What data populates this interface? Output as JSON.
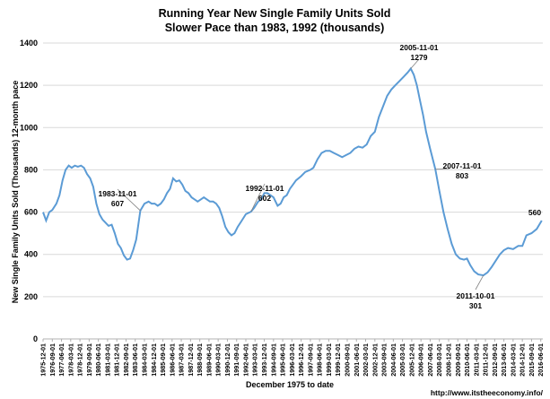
{
  "chart_data": {
    "type": "line",
    "title": "Running Year New Single Family Units Sold",
    "subtitle": "Slower Pace than 1983, 1992 (thousands)",
    "xlabel": "December 1975 to date",
    "ylabel": "New Single Family Units Sold (Thousands) 12-month pace",
    "ylim": [
      0,
      1400
    ],
    "yticks": [
      0,
      200,
      400,
      600,
      800,
      1000,
      1200,
      1400
    ],
    "grid": true,
    "legend": "none",
    "line_color": "#5b9bd5",
    "x_tick_labels": [
      "1975-12-01",
      "1976-09-01",
      "1977-06-01",
      "1978-03-01",
      "1978-12-01",
      "1979-09-01",
      "1980-06-01",
      "1981-03-01",
      "1981-12-01",
      "1982-09-01",
      "1983-06-01",
      "1984-03-01",
      "1984-12-01",
      "1985-09-01",
      "1986-06-01",
      "1987-03-01",
      "1987-12-01",
      "1988-09-01",
      "1989-06-01",
      "1990-03-01",
      "1990-12-01",
      "1991-09-01",
      "1992-06-01",
      "1993-03-01",
      "1993-12-01",
      "1994-09-01",
      "1995-06-01",
      "1996-03-01",
      "1996-12-01",
      "1997-09-01",
      "1998-06-01",
      "1999-03-01",
      "1999-12-01",
      "2000-09-01",
      "2001-06-01",
      "2002-03-01",
      "2002-12-01",
      "2003-09-01",
      "2004-06-01",
      "2005-03-01",
      "2005-12-01",
      "2006-09-01",
      "2007-06-01",
      "2008-03-01",
      "2008-12-01",
      "2009-09-01",
      "2010-06-01",
      "2011-03-01",
      "2011-12-01",
      "2012-09-01",
      "2013-06-01",
      "2014-03-01",
      "2014-12-01",
      "2015-09-01",
      "2016-06-01"
    ],
    "points": [
      [
        "1975-12-01",
        600
      ],
      [
        "1976-03-01",
        560
      ],
      [
        "1976-06-01",
        600
      ],
      [
        "1976-09-01",
        610
      ],
      [
        "1977-01-01",
        640
      ],
      [
        "1977-04-01",
        680
      ],
      [
        "1977-07-01",
        750
      ],
      [
        "1977-10-01",
        800
      ],
      [
        "1978-01-01",
        820
      ],
      [
        "1978-04-01",
        810
      ],
      [
        "1978-07-01",
        820
      ],
      [
        "1978-10-01",
        815
      ],
      [
        "1979-01-01",
        820
      ],
      [
        "1979-04-01",
        810
      ],
      [
        "1979-07-01",
        780
      ],
      [
        "1979-10-01",
        760
      ],
      [
        "1980-01-01",
        720
      ],
      [
        "1980-04-01",
        640
      ],
      [
        "1980-07-01",
        590
      ],
      [
        "1980-10-01",
        565
      ],
      [
        "1981-01-01",
        550
      ],
      [
        "1981-04-01",
        535
      ],
      [
        "1981-07-01",
        540
      ],
      [
        "1981-10-01",
        500
      ],
      [
        "1982-01-01",
        450
      ],
      [
        "1982-04-01",
        430
      ],
      [
        "1982-07-01",
        395
      ],
      [
        "1982-10-01",
        375
      ],
      [
        "1983-01-01",
        380
      ],
      [
        "1983-04-01",
        420
      ],
      [
        "1983-07-01",
        470
      ],
      [
        "1983-11-01",
        607
      ],
      [
        "1984-03-01",
        640
      ],
      [
        "1984-07-01",
        650
      ],
      [
        "1984-10-01",
        640
      ],
      [
        "1985-01-01",
        640
      ],
      [
        "1985-04-01",
        630
      ],
      [
        "1985-07-01",
        640
      ],
      [
        "1985-10-01",
        660
      ],
      [
        "1986-01-01",
        690
      ],
      [
        "1986-04-01",
        710
      ],
      [
        "1986-07-01",
        760
      ],
      [
        "1986-10-01",
        745
      ],
      [
        "1987-01-01",
        750
      ],
      [
        "1987-04-01",
        730
      ],
      [
        "1987-07-01",
        700
      ],
      [
        "1987-10-01",
        690
      ],
      [
        "1988-01-01",
        670
      ],
      [
        "1988-04-01",
        660
      ],
      [
        "1988-07-01",
        650
      ],
      [
        "1988-10-01",
        660
      ],
      [
        "1989-01-01",
        670
      ],
      [
        "1989-04-01",
        660
      ],
      [
        "1989-07-01",
        650
      ],
      [
        "1989-10-01",
        650
      ],
      [
        "1990-01-01",
        640
      ],
      [
        "1990-04-01",
        620
      ],
      [
        "1990-07-01",
        580
      ],
      [
        "1990-10-01",
        530
      ],
      [
        "1991-01-01",
        505
      ],
      [
        "1991-04-01",
        490
      ],
      [
        "1991-07-01",
        500
      ],
      [
        "1991-10-01",
        530
      ],
      [
        "1992-02-01",
        560
      ],
      [
        "1992-06-01",
        590
      ],
      [
        "1992-11-01",
        602
      ],
      [
        "1993-02-01",
        620
      ],
      [
        "1993-06-01",
        650
      ],
      [
        "1993-09-01",
        660
      ],
      [
        "1993-12-01",
        690
      ],
      [
        "1994-03-01",
        690
      ],
      [
        "1994-06-01",
        680
      ],
      [
        "1994-09-01",
        670
      ],
      [
        "1995-01-01",
        630
      ],
      [
        "1995-04-01",
        640
      ],
      [
        "1995-07-01",
        670
      ],
      [
        "1995-10-01",
        680
      ],
      [
        "1996-01-01",
        710
      ],
      [
        "1996-04-01",
        730
      ],
      [
        "1996-07-01",
        750
      ],
      [
        "1996-12-01",
        770
      ],
      [
        "1997-04-01",
        790
      ],
      [
        "1997-09-01",
        800
      ],
      [
        "1997-12-01",
        810
      ],
      [
        "1998-04-01",
        850
      ],
      [
        "1998-08-01",
        880
      ],
      [
        "1998-12-01",
        890
      ],
      [
        "1999-04-01",
        890
      ],
      [
        "1999-08-01",
        880
      ],
      [
        "1999-12-01",
        870
      ],
      [
        "2000-04-01",
        860
      ],
      [
        "2000-08-01",
        870
      ],
      [
        "2000-12-01",
        880
      ],
      [
        "2001-04-01",
        900
      ],
      [
        "2001-08-01",
        910
      ],
      [
        "2001-12-01",
        905
      ],
      [
        "2002-04-01",
        920
      ],
      [
        "2002-08-01",
        960
      ],
      [
        "2002-12-01",
        980
      ],
      [
        "2003-04-01",
        1050
      ],
      [
        "2003-08-01",
        1100
      ],
      [
        "2003-12-01",
        1150
      ],
      [
        "2004-04-01",
        1180
      ],
      [
        "2004-08-01",
        1200
      ],
      [
        "2004-12-01",
        1220
      ],
      [
        "2005-04-01",
        1240
      ],
      [
        "2005-08-01",
        1260
      ],
      [
        "2005-11-01",
        1279
      ],
      [
        "2006-02-01",
        1250
      ],
      [
        "2006-05-01",
        1200
      ],
      [
        "2006-08-01",
        1130
      ],
      [
        "2006-11-01",
        1060
      ],
      [
        "2007-02-01",
        980
      ],
      [
        "2007-06-01",
        900
      ],
      [
        "2007-11-01",
        803
      ],
      [
        "2008-03-01",
        700
      ],
      [
        "2008-07-01",
        600
      ],
      [
        "2008-11-01",
        520
      ],
      [
        "2009-03-01",
        450
      ],
      [
        "2009-07-01",
        400
      ],
      [
        "2009-11-01",
        380
      ],
      [
        "2010-03-01",
        375
      ],
      [
        "2010-06-01",
        380
      ],
      [
        "2010-09-01",
        350
      ],
      [
        "2011-01-01",
        320
      ],
      [
        "2011-05-01",
        305
      ],
      [
        "2011-10-01",
        301
      ],
      [
        "2012-02-01",
        315
      ],
      [
        "2012-06-01",
        340
      ],
      [
        "2012-10-01",
        370
      ],
      [
        "2013-02-01",
        400
      ],
      [
        "2013-06-01",
        420
      ],
      [
        "2013-10-01",
        430
      ],
      [
        "2014-03-01",
        425
      ],
      [
        "2014-08-01",
        440
      ],
      [
        "2014-12-01",
        440
      ],
      [
        "2015-04-01",
        490
      ],
      [
        "2015-09-01",
        500
      ],
      [
        "2016-02-01",
        520
      ],
      [
        "2016-07-01",
        560
      ]
    ],
    "annotations": [
      {
        "date": "1983-11-01",
        "value": 607,
        "label_date": "1983-11-01",
        "label_value": "607"
      },
      {
        "date": "1992-11-01",
        "value": 602,
        "label_date": "1992-11-01",
        "label_value": "602"
      },
      {
        "date": "2005-11-01",
        "value": 1279,
        "label_date": "2005-11-01",
        "label_value": "1279"
      },
      {
        "date": "2007-11-01",
        "value": 803,
        "label_date": "2007-11-01",
        "label_value": "803"
      },
      {
        "date": "2011-10-01",
        "value": 301,
        "label_date": "2011-10-01",
        "label_value": "301"
      },
      {
        "date": "2016-07-01",
        "value": 560,
        "label_date": "",
        "label_value": "560"
      }
    ],
    "source": "http://www.itstheeconomy.info/"
  }
}
